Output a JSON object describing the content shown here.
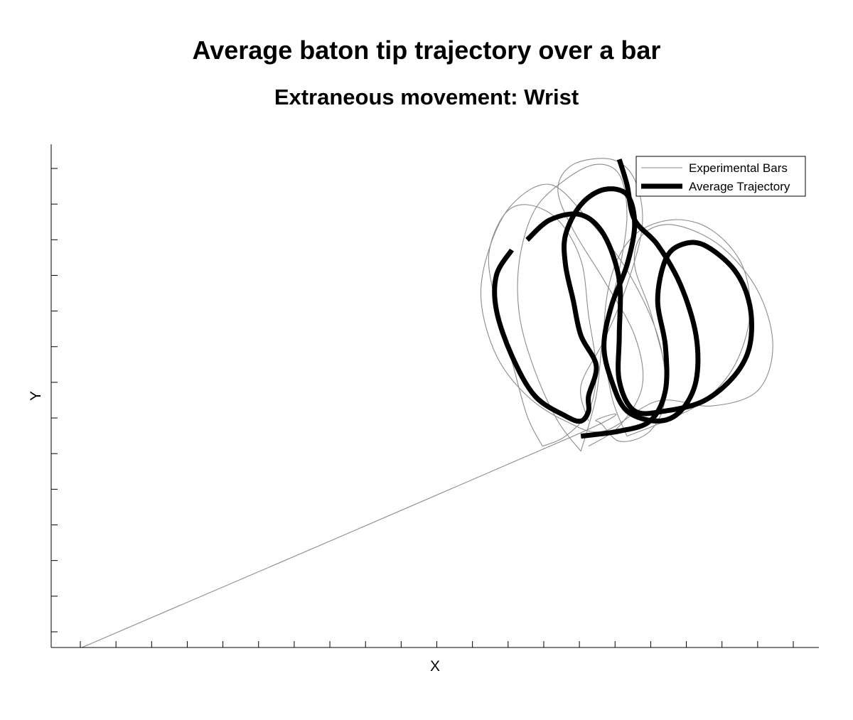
{
  "chart_data": {
    "type": "line",
    "title": "Average baton tip trajectory over a bar",
    "subtitle": "Extraneous movement: Wrist",
    "xlabel": "X",
    "ylabel": "Y",
    "xlim": [
      0,
      1
    ],
    "ylim": [
      0,
      1
    ],
    "tick_labels_shown": false,
    "x_tick_count": 21,
    "y_tick_count": 14,
    "grid": false,
    "legend_position": "top-right",
    "colors": {
      "experimental": "#8c8c8c",
      "average": "#000000"
    },
    "series": [
      {
        "name": "Experimental Bars",
        "style": "thin-gray",
        "paths": [
          [
            [
              0.04,
              0.0
            ],
            [
              0.68,
              0.42
            ],
            [
              0.71,
              0.45
            ],
            [
              0.74,
              0.41
            ],
            [
              0.78,
              0.43
            ],
            [
              0.8,
              0.5
            ],
            [
              0.79,
              0.62
            ],
            [
              0.75,
              0.75
            ],
            [
              0.7,
              0.85
            ],
            [
              0.65,
              0.92
            ],
            [
              0.6,
              0.88
            ],
            [
              0.57,
              0.79
            ],
            [
              0.56,
              0.69
            ],
            [
              0.58,
              0.58
            ],
            [
              0.62,
              0.5
            ],
            [
              0.67,
              0.45
            ],
            [
              0.72,
              0.43
            ],
            [
              0.79,
              0.49
            ],
            [
              0.86,
              0.48
            ],
            [
              0.92,
              0.51
            ],
            [
              0.94,
              0.6
            ],
            [
              0.92,
              0.71
            ],
            [
              0.87,
              0.8
            ],
            [
              0.81,
              0.84
            ],
            [
              0.77,
              0.82
            ],
            [
              0.76,
              0.76
            ],
            [
              0.78,
              0.67
            ],
            [
              0.8,
              0.56
            ]
          ],
          [
            [
              0.7,
              0.4
            ],
            [
              0.74,
              0.44
            ],
            [
              0.77,
              0.52
            ],
            [
              0.76,
              0.62
            ],
            [
              0.72,
              0.73
            ],
            [
              0.68,
              0.83
            ],
            [
              0.66,
              0.91
            ],
            [
              0.68,
              0.96
            ],
            [
              0.73,
              0.97
            ],
            [
              0.76,
              0.93
            ],
            [
              0.77,
              0.84
            ],
            [
              0.75,
              0.72
            ],
            [
              0.72,
              0.61
            ],
            [
              0.69,
              0.52
            ],
            [
              0.7,
              0.45
            ]
          ],
          [
            [
              0.64,
              0.4
            ],
            [
              0.62,
              0.46
            ],
            [
              0.6,
              0.57
            ],
            [
              0.58,
              0.68
            ],
            [
              0.57,
              0.78
            ],
            [
              0.59,
              0.86
            ],
            [
              0.62,
              0.88
            ],
            [
              0.66,
              0.85
            ],
            [
              0.69,
              0.77
            ],
            [
              0.7,
              0.66
            ],
            [
              0.71,
              0.55
            ],
            [
              0.7,
              0.47
            ],
            [
              0.67,
              0.42
            ],
            [
              0.64,
              0.4
            ]
          ],
          [
            [
              0.75,
              0.42
            ],
            [
              0.73,
              0.5
            ],
            [
              0.72,
              0.62
            ],
            [
              0.73,
              0.74
            ],
            [
              0.76,
              0.82
            ],
            [
              0.81,
              0.85
            ],
            [
              0.86,
              0.83
            ],
            [
              0.9,
              0.76
            ],
            [
              0.91,
              0.66
            ],
            [
              0.89,
              0.56
            ],
            [
              0.85,
              0.49
            ],
            [
              0.8,
              0.45
            ],
            [
              0.75,
              0.42
            ]
          ],
          [
            [
              0.69,
              0.39
            ],
            [
              0.66,
              0.45
            ],
            [
              0.63,
              0.55
            ],
            [
              0.61,
              0.66
            ],
            [
              0.61,
              0.77
            ],
            [
              0.63,
              0.87
            ],
            [
              0.67,
              0.93
            ],
            [
              0.71,
              0.96
            ],
            [
              0.74,
              0.94
            ],
            [
              0.75,
              0.86
            ],
            [
              0.74,
              0.75
            ],
            [
              0.72,
              0.63
            ],
            [
              0.71,
              0.5
            ],
            [
              0.69,
              0.39
            ]
          ]
        ]
      },
      {
        "name": "Average Trajectory",
        "style": "thick-black",
        "paths": [
          [
            [
              0.6,
              0.79
            ],
            [
              0.58,
              0.74
            ],
            [
              0.58,
              0.67
            ],
            [
              0.6,
              0.58
            ],
            [
              0.63,
              0.5
            ],
            [
              0.67,
              0.46
            ],
            [
              0.69,
              0.45
            ],
            [
              0.7,
              0.47
            ],
            [
              0.7,
              0.5
            ],
            [
              0.71,
              0.56
            ],
            [
              0.69,
              0.62
            ],
            [
              0.68,
              0.69
            ],
            [
              0.67,
              0.76
            ],
            [
              0.67,
              0.82
            ],
            [
              0.69,
              0.88
            ],
            [
              0.72,
              0.91
            ],
            [
              0.75,
              0.9
            ],
            [
              0.76,
              0.84
            ],
            [
              0.75,
              0.76
            ],
            [
              0.73,
              0.68
            ],
            [
              0.72,
              0.6
            ],
            [
              0.73,
              0.53
            ],
            [
              0.75,
              0.47
            ],
            [
              0.79,
              0.45
            ],
            [
              0.82,
              0.47
            ],
            [
              0.84,
              0.53
            ],
            [
              0.84,
              0.62
            ],
            [
              0.82,
              0.72
            ],
            [
              0.79,
              0.8
            ],
            [
              0.76,
              0.85
            ],
            [
              0.75,
              0.92
            ],
            [
              0.74,
              0.97
            ]
          ],
          [
            [
              0.62,
              0.81
            ],
            [
              0.65,
              0.85
            ],
            [
              0.69,
              0.86
            ],
            [
              0.72,
              0.82
            ],
            [
              0.74,
              0.73
            ],
            [
              0.74,
              0.62
            ],
            [
              0.74,
              0.53
            ],
            [
              0.76,
              0.47
            ],
            [
              0.8,
              0.47
            ],
            [
              0.85,
              0.49
            ],
            [
              0.89,
              0.54
            ],
            [
              0.91,
              0.6
            ],
            [
              0.91,
              0.68
            ],
            [
              0.89,
              0.75
            ],
            [
              0.85,
              0.8
            ],
            [
              0.82,
              0.8
            ],
            [
              0.8,
              0.77
            ],
            [
              0.79,
              0.69
            ],
            [
              0.8,
              0.6
            ],
            [
              0.8,
              0.51
            ],
            [
              0.78,
              0.45
            ],
            [
              0.74,
              0.43
            ],
            [
              0.69,
              0.42
            ]
          ]
        ]
      }
    ]
  }
}
